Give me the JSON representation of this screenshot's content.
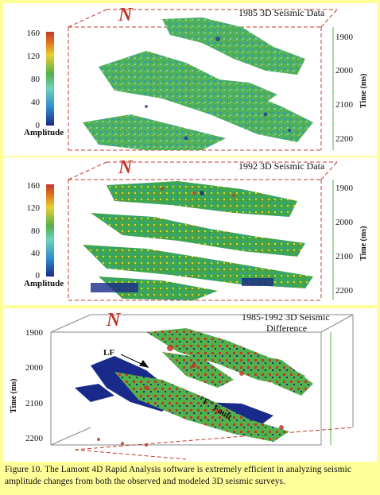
{
  "panels": [
    {
      "title": "1985 3D Seismic Data",
      "north": "N",
      "colorbar": {
        "ticks": [
          "160",
          "120",
          "80",
          "40",
          "0"
        ],
        "label": "Amplitude"
      },
      "time_axis": {
        "title": "Time (ms)",
        "ticks": [
          "1900",
          "2000",
          "2100",
          "2200"
        ]
      }
    },
    {
      "title": "1992 3D Seismic Data",
      "north": "N",
      "colorbar": {
        "ticks": [
          "160",
          "120",
          "80",
          "40",
          "0"
        ],
        "label": "Amplitude"
      },
      "time_axis": {
        "title": "Time (ms)",
        "ticks": [
          "1900",
          "2000",
          "2100",
          "2200"
        ]
      }
    },
    {
      "title_line1": "1985-1992 3D Seismic",
      "title_line2": "Difference",
      "north": "N",
      "time_axis": {
        "title": "Time (ms)",
        "ticks": [
          "1900",
          "2000",
          "2100",
          "2200"
        ]
      },
      "annotations": {
        "lf": "LF",
        "fault": "\"F\" Fault"
      }
    }
  ],
  "caption": "Figure 10.  The Lamont 4D Rapid Analysis software is extremely efficient in analyzing seismic amplitude changes from both the observed and modeled 3D seismic surveys.",
  "colors": {
    "background": "#ffff99",
    "panel": "#ffffff",
    "box_lines": "#c0392b",
    "colorbar_stops": [
      "#1a2a8a",
      "#2f8fcf",
      "#6ed3b8",
      "#53b04a",
      "#e7d232",
      "#e0781e",
      "#c0392b"
    ],
    "difference_colors": [
      "#1a2a8a",
      "#53b04a",
      "#c0392b"
    ]
  }
}
